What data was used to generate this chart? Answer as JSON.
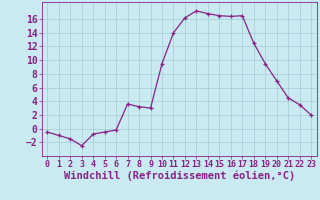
{
  "x": [
    0,
    1,
    2,
    3,
    4,
    5,
    6,
    7,
    8,
    9,
    10,
    11,
    12,
    13,
    14,
    15,
    16,
    17,
    18,
    19,
    20,
    21,
    22,
    23
  ],
  "y": [
    -0.5,
    -1.0,
    -1.5,
    -2.5,
    -0.8,
    -0.5,
    -0.2,
    3.6,
    3.2,
    3.0,
    9.5,
    14.0,
    16.2,
    17.2,
    16.8,
    16.5,
    16.4,
    16.5,
    12.5,
    9.5,
    7.0,
    4.5,
    3.5,
    2.0
  ],
  "line_color": "#882288",
  "marker": "+",
  "marker_color": "#882288",
  "bg_color": "#c8eaf0",
  "grid_color": "#a8ccd8",
  "xlabel": "Windchill (Refroidissement éolien,°C)",
  "xlabel_color": "#882288",
  "xlabel_fontsize": 7.5,
  "tick_color": "#882288",
  "ytick_fontsize": 7,
  "xtick_fontsize": 6,
  "ylim": [
    -4,
    18.5
  ],
  "xlim": [
    -0.5,
    23.5
  ],
  "yticks": [
    -2,
    0,
    2,
    4,
    6,
    8,
    10,
    12,
    14,
    16
  ],
  "xticks": [
    0,
    1,
    2,
    3,
    4,
    5,
    6,
    7,
    8,
    9,
    10,
    11,
    12,
    13,
    14,
    15,
    16,
    17,
    18,
    19,
    20,
    21,
    22,
    23
  ],
  "spine_color": "#882288",
  "linewidth": 0.9,
  "markersize": 3.5
}
